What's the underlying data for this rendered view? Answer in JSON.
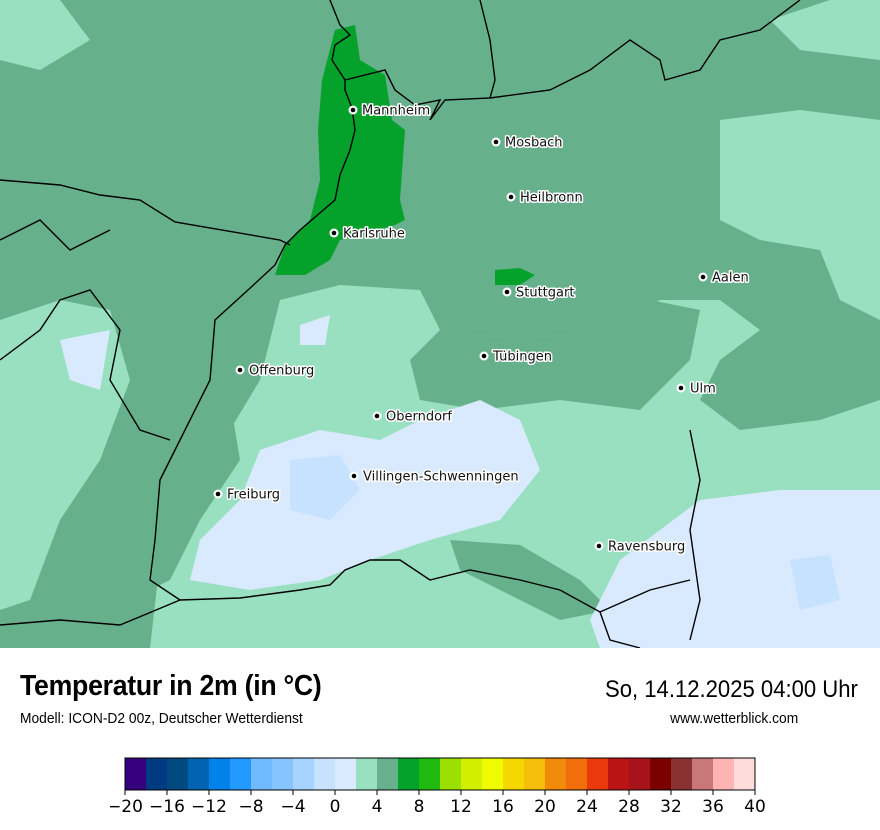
{
  "header": {
    "title": "Temperatur in 2m (in °C)",
    "subtitle": "Modell: ICON-D2 00z, Deutscher Wetterdienst",
    "datetime": "So, 14.12.2025 04:00 Uhr",
    "website": "www.wetterblick.com"
  },
  "map": {
    "cities": [
      {
        "name": "Mannheim"
      },
      {
        "name": "Mosbach"
      },
      {
        "name": "Heilbronn"
      },
      {
        "name": "Karlsruhe"
      },
      {
        "name": "Aalen"
      },
      {
        "name": "Stuttgart"
      },
      {
        "name": "Tübingen"
      },
      {
        "name": "Offenburg"
      },
      {
        "name": "Ulm"
      },
      {
        "name": "Oberndorf"
      },
      {
        "name": "Villingen-Schwenningen"
      },
      {
        "name": "Freiburg"
      },
      {
        "name": "Ravensburg"
      }
    ]
  },
  "legend": {
    "min": -20,
    "max": 40,
    "step": 2,
    "tick_labels": [
      "−20",
      "−16",
      "−12",
      "−8",
      "−4",
      "0",
      "4",
      "8",
      "12",
      "16",
      "20",
      "24",
      "28",
      "32",
      "36",
      "40"
    ],
    "colors": [
      "#34007e",
      "#003a80",
      "#004a80",
      "#0064b0",
      "#0082ea",
      "#2499ff",
      "#70bbff",
      "#85c4ff",
      "#a6d4ff",
      "#c6e2ff",
      "#d9eaff",
      "#98e0c0",
      "#66b18b",
      "#05a22b",
      "#20b90f",
      "#9be000",
      "#d0f000",
      "#f0fa00",
      "#f5d800",
      "#f5be0a",
      "#f28b0a",
      "#f26e0a",
      "#e83a0a",
      "#ba1414",
      "#a8121a",
      "#7a0000",
      "#8a3232",
      "#c87878",
      "#ffb4b4",
      "#ffdcdc"
    ]
  }
}
